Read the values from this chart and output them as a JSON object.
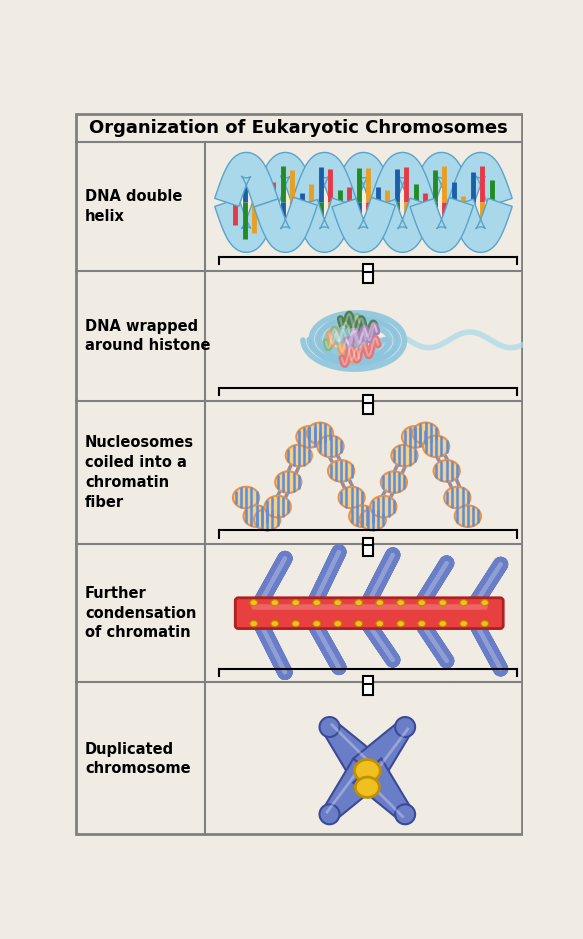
{
  "title": "Organization of Eukaryotic Chromosomes",
  "background_color": "#f0ebe3",
  "border_color": "#808080",
  "title_fontsize": 13,
  "label_fontsize": 10.5,
  "rows": [
    {
      "label": "DNA double\nhelix"
    },
    {
      "label": "DNA wrapped\naround histone"
    },
    {
      "label": "Nucleosomes\ncoiled into a\nchromatin\nfiber"
    },
    {
      "label": "Further\ncondensation\nof chromatin"
    },
    {
      "label": "Duplicated\nchromosome"
    }
  ],
  "dna_backbone_color": "#a8d8ea",
  "dna_backbone_edge": "#5ba3c9",
  "base_colors_dna": [
    "#e63946",
    "#228b22",
    "#e9a020",
    "#1a5fa8"
  ],
  "nucleosome_color": "#f5d08a",
  "nucleosome_edge": "#e8924a",
  "nucleosome_dna_color": "#5b8dd9",
  "nucleosome_dna_edge": "#e8924a",
  "histone_colors": [
    "#7fb87f",
    "#4a7a4a",
    "#e8a060",
    "#e87070",
    "#7fbfbf",
    "#b07fbf"
  ],
  "chromatin_fiber_color": "#6a7ec8",
  "chromatin_fiber_edge": "#3a4a98",
  "scaffold_color": "#e84040",
  "scaffold_edge": "#b02020",
  "scaffold_highlight": "#f08080",
  "centromere_color": "#f0c020",
  "centromere_edge": "#c09000",
  "chromosome_color": "#6a7ec8",
  "chromosome_edge": "#3a4a98"
}
